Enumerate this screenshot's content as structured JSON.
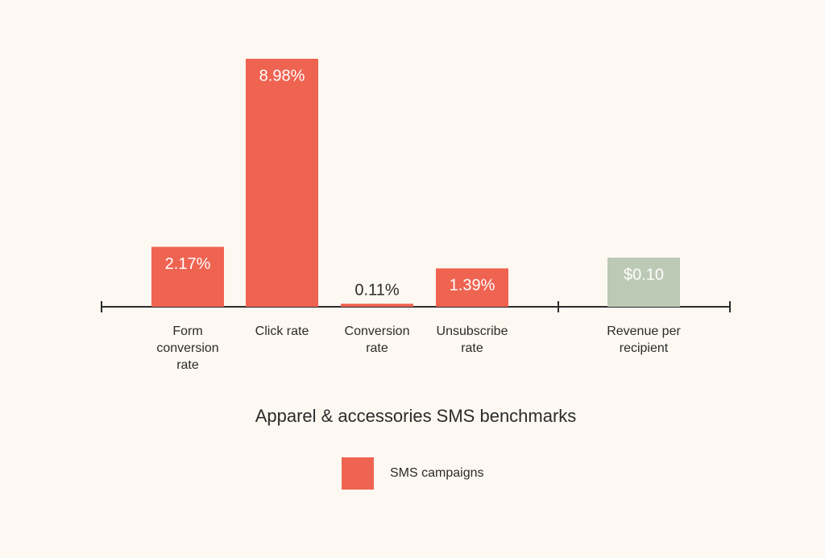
{
  "chart_data": [
    {
      "type": "bar",
      "title": "Apparel & accessories SMS benchmarks",
      "categories": [
        "Form conversion rate",
        "Click rate",
        "Conversion rate",
        "Unsubscribe rate"
      ],
      "series": [
        {
          "name": "SMS campaigns",
          "color": "#ef6351",
          "values": [
            2.17,
            8.98,
            0.11,
            1.39
          ],
          "value_labels": [
            "2.17%",
            "8.98%",
            "0.11%",
            "1.39%"
          ]
        }
      ]
    },
    {
      "type": "bar",
      "categories": [
        "Revenue per recipient"
      ],
      "series": [
        {
          "color": "#bcc9b4",
          "values": [
            0.1
          ],
          "value_labels": [
            "$0.10"
          ]
        }
      ]
    }
  ]
}
